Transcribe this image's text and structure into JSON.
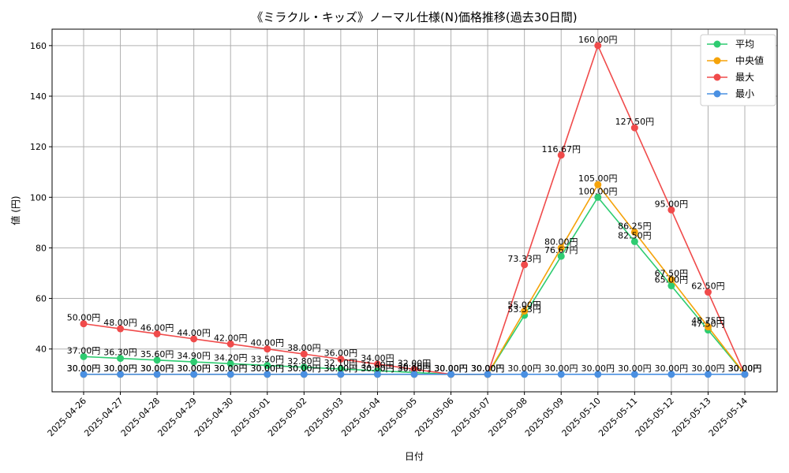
{
  "chart_data": {
    "type": "line",
    "title": "《ミラクル・キッズ》ノーマル仕様(N)価格推移(過去30日間)",
    "xlabel": "日付",
    "ylabel": "値 (円)",
    "label_suffix": "円",
    "categories": [
      "2025-04-26",
      "2025-04-27",
      "2025-04-28",
      "2025-04-29",
      "2025-04-30",
      "2025-05-01",
      "2025-05-02",
      "2025-05-03",
      "2025-05-04",
      "2025-05-05",
      "2025-05-06",
      "2025-05-07",
      "2025-05-08",
      "2025-05-09",
      "2025-05-10",
      "2025-05-11",
      "2025-05-12",
      "2025-05-13",
      "2025-05-14"
    ],
    "yticks": [
      40,
      60,
      80,
      100,
      120,
      140,
      160
    ],
    "ylim": [
      23.07,
      166.5
    ],
    "grid": true,
    "legend_position": "top-right",
    "series": [
      {
        "name": "平均",
        "color": "#2ecc71",
        "values": [
          37.0,
          36.3,
          35.6,
          34.9,
          34.2,
          33.5,
          32.8,
          32.1,
          31.4,
          30.7,
          30.0,
          30.0,
          53.33,
          76.67,
          100.0,
          82.5,
          65.0,
          47.5,
          30.0
        ]
      },
      {
        "name": "中央値",
        "color": "#f5a30a",
        "values": [
          30.0,
          30.0,
          30.0,
          30.0,
          30.0,
          30.0,
          30.0,
          30.0,
          30.0,
          30.0,
          30.0,
          30.0,
          55.0,
          80.0,
          105.0,
          86.25,
          67.5,
          48.75,
          30.0
        ]
      },
      {
        "name": "最大",
        "color": "#f04b4b",
        "values": [
          50.0,
          48.0,
          46.0,
          44.0,
          42.0,
          40.0,
          38.0,
          36.0,
          34.0,
          32.0,
          30.0,
          30.0,
          73.33,
          116.67,
          160.0,
          127.5,
          95.0,
          62.5,
          30.0
        ]
      },
      {
        "name": "最小",
        "color": "#4a90e2",
        "values": [
          30.0,
          30.0,
          30.0,
          30.0,
          30.0,
          30.0,
          30.0,
          30.0,
          30.0,
          30.0,
          30.0,
          30.0,
          30.0,
          30.0,
          30.0,
          30.0,
          30.0,
          30.0,
          30.0
        ]
      }
    ]
  }
}
